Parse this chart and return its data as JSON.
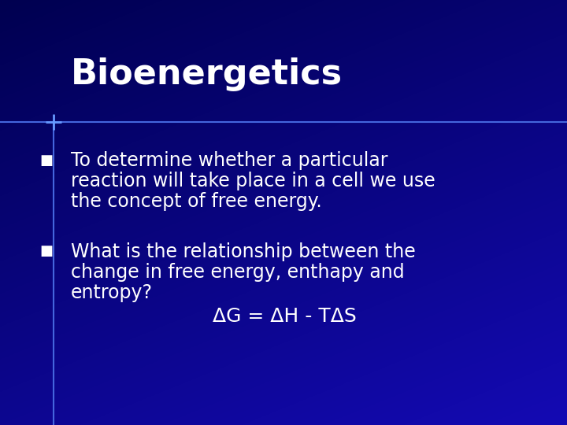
{
  "title": "Bioenergetics",
  "title_fontsize": 32,
  "title_fontweight": "bold",
  "title_color": "#FFFFFF",
  "bg_dark": "#000066",
  "bg_mid": "#0000AA",
  "bg_bright": "#1111CC",
  "bullet1_line1": "To determine whether a particular",
  "bullet1_line2": "reaction will take place in a cell we use",
  "bullet1_line3": "the concept of free energy.",
  "bullet2_line1": "What is the relationship between the",
  "bullet2_line2": "change in free energy, enthapy and",
  "bullet2_line3": "entropy?",
  "formula": "ΔG = ΔH - TΔS",
  "text_color": "#FFFFFF",
  "bullet_fontsize": 17,
  "formula_fontsize": 18,
  "accent_color": "#6699FF",
  "line_color": "#4466DD"
}
